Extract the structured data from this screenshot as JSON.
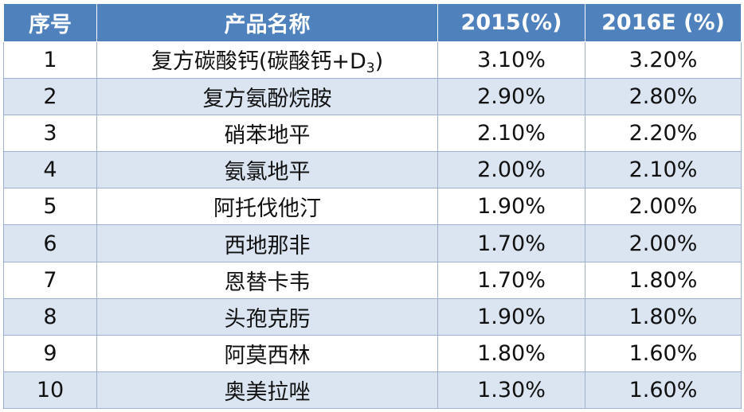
{
  "table": {
    "headers": [
      "序号",
      "产品名称",
      "2015(%)",
      "2016E (%)"
    ],
    "rows": [
      {
        "no": "1",
        "name": "复方碳酸钙(碳酸钙+D",
        "name_sub": "3",
        "name_suffix": ")",
        "y2015": "3.10%",
        "y2016": "3.20%"
      },
      {
        "no": "2",
        "name": "复方氨酚烷胺",
        "y2015": "2.90%",
        "y2016": "2.80%"
      },
      {
        "no": "3",
        "name": "硝苯地平",
        "y2015": "2.10%",
        "y2016": "2.20%"
      },
      {
        "no": "4",
        "name": "氨氯地平",
        "y2015": "2.00%",
        "y2016": "2.10%"
      },
      {
        "no": "5",
        "name": "阿托伐他汀",
        "y2015": "1.90%",
        "y2016": "2.00%"
      },
      {
        "no": "6",
        "name": "西地那非",
        "y2015": "1.70%",
        "y2016": "2.00%"
      },
      {
        "no": "7",
        "name": "恩替卡韦",
        "y2015": "1.70%",
        "y2016": "1.80%"
      },
      {
        "no": "8",
        "name": "头孢克肟",
        "y2015": "1.90%",
        "y2016": "1.80%"
      },
      {
        "no": "9",
        "name": "阿莫西林",
        "y2015": "1.80%",
        "y2016": "1.60%"
      },
      {
        "no": "10",
        "name": "奥美拉唑",
        "y2015": "1.30%",
        "y2016": "1.60%"
      }
    ]
  },
  "colors": {
    "header_bg": "#4f81bd",
    "stripe": "#dbe5f1",
    "border": "#9fb0cd"
  }
}
